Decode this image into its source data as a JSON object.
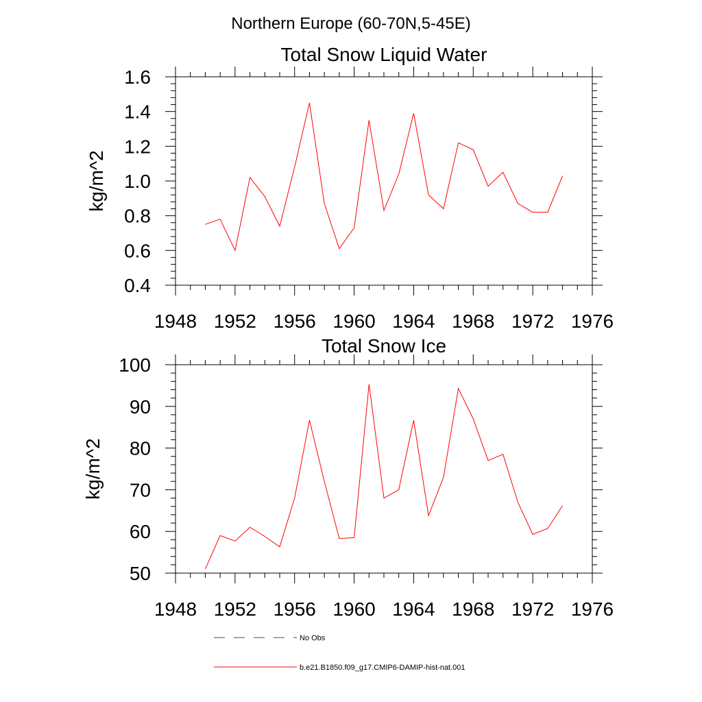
{
  "figure": {
    "title": "Northern Europe (60-70N,5-45E)"
  },
  "chart_data": [
    {
      "type": "line",
      "title": "Total Snow Liquid Water",
      "xlabel": "",
      "ylabel": "kg/m^2",
      "xlim": [
        1948,
        1976
      ],
      "ylim": [
        0.4,
        1.6
      ],
      "xticks": [
        1948,
        1952,
        1956,
        1960,
        1964,
        1968,
        1972,
        1976
      ],
      "yticks": [
        0.4,
        0.6,
        0.8,
        1.0,
        1.2,
        1.4,
        1.6
      ],
      "ytick_labels": [
        "0.4",
        "0.6",
        "0.8",
        "1.0",
        "1.2",
        "1.4",
        "1.6"
      ],
      "x": [
        1950,
        1951,
        1952,
        1953,
        1954,
        1955,
        1956,
        1957,
        1958,
        1959,
        1960,
        1961,
        1962,
        1963,
        1964,
        1965,
        1966,
        1967,
        1968,
        1969,
        1970,
        1971,
        1972,
        1973,
        1974
      ],
      "series": [
        {
          "name": "b.e21.B1850.f09_g17.CMIP6-DAMIP-hist-nat.001",
          "color": "#ff0000",
          "values": [
            0.75,
            0.78,
            0.6,
            1.02,
            0.91,
            0.74,
            1.08,
            1.45,
            0.87,
            0.61,
            0.73,
            1.35,
            0.83,
            1.04,
            1.39,
            0.92,
            0.84,
            1.22,
            1.18,
            0.97,
            1.05,
            0.87,
            0.82,
            0.82,
            1.03
          ]
        }
      ]
    },
    {
      "type": "line",
      "title": "Total Snow Ice",
      "xlabel": "",
      "ylabel": "kg/m^2",
      "xlim": [
        1948,
        1976
      ],
      "ylim": [
        50,
        100
      ],
      "xticks": [
        1948,
        1952,
        1956,
        1960,
        1964,
        1968,
        1972,
        1976
      ],
      "yticks": [
        50,
        60,
        70,
        80,
        90,
        100
      ],
      "ytick_labels": [
        "50",
        "60",
        "70",
        "80",
        "90",
        "100"
      ],
      "x": [
        1950,
        1951,
        1952,
        1953,
        1954,
        1955,
        1956,
        1957,
        1958,
        1959,
        1960,
        1961,
        1962,
        1963,
        1964,
        1965,
        1966,
        1967,
        1968,
        1969,
        1970,
        1971,
        1972,
        1973,
        1974
      ],
      "series": [
        {
          "name": "b.e21.B1850.f09_g17.CMIP6-DAMIP-hist-nat.001",
          "color": "#ff0000",
          "values": [
            51.0,
            59.0,
            57.7,
            61.0,
            58.8,
            56.3,
            68.0,
            86.7,
            72.0,
            58.3,
            58.5,
            95.3,
            68.0,
            70.0,
            86.7,
            63.8,
            73.0,
            94.3,
            87.0,
            77.0,
            78.5,
            67.0,
            59.3,
            60.7,
            66.2
          ]
        }
      ]
    }
  ],
  "legend": {
    "items": [
      {
        "label": "No Obs",
        "style": "dashed",
        "color": "#3c4a8a"
      },
      {
        "label": "b.e21.B1850.f09_g17.CMIP6-DAMIP-hist-nat.001",
        "style": "solid",
        "color": "#ff0000"
      }
    ]
  }
}
